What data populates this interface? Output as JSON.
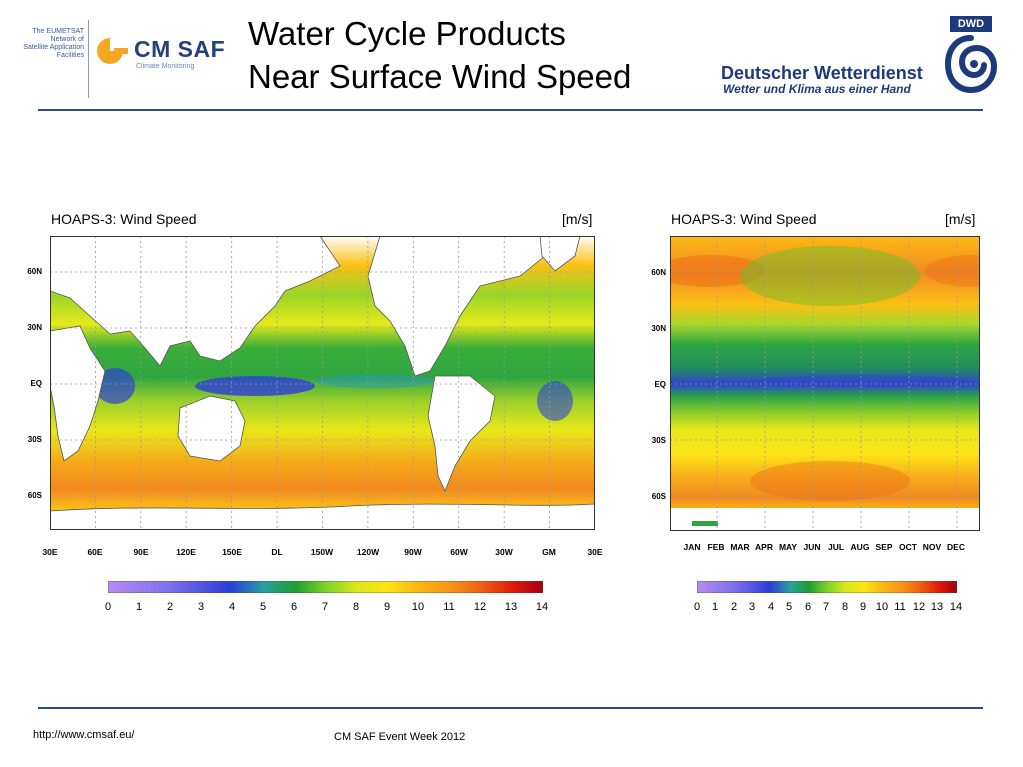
{
  "header": {
    "title_line1": "Water Cycle Products",
    "title_line2": "Near Surface Wind Speed",
    "eumetsat_text": [
      "The EUMETSAT",
      "Network of",
      "Satellite Application",
      "Facilities"
    ],
    "cmsaf_logo_text": "CM SAF",
    "cmsaf_sub_text": "Climate Monitoring",
    "dwd_badge": "DWD",
    "dwd_name": "Deutscher Wetterdienst",
    "dwd_slogan": "Wetter und Klima aus einer Hand"
  },
  "left_plot": {
    "title": "HOAPS-3: Wind Speed",
    "unit": "[m/s]",
    "lat_labels": [
      "60N",
      "30N",
      "EQ",
      "30S",
      "60S"
    ],
    "lon_labels": [
      "30E",
      "60E",
      "90E",
      "120E",
      "150E",
      "DL",
      "150W",
      "120W",
      "90W",
      "60W",
      "30W",
      "GM",
      "30E"
    ],
    "colorbar_ticks": [
      "0",
      "1",
      "2",
      "3",
      "4",
      "5",
      "6",
      "7",
      "8",
      "9",
      "10",
      "11",
      "12",
      "13",
      "14"
    ]
  },
  "right_plot": {
    "title": "HOAPS-3: Wind Speed",
    "unit": "[m/s]",
    "lat_labels": [
      "60N",
      "30N",
      "EQ",
      "30S",
      "60S"
    ],
    "month_labels": [
      "JAN",
      "FEB",
      "MAR",
      "APR",
      "MAY",
      "JUN",
      "JUL",
      "AUG",
      "SEP",
      "OCT",
      "NOV",
      "DEC"
    ],
    "colorbar_ticks": [
      "0",
      "1",
      "2",
      "3",
      "4",
      "5",
      "6",
      "7",
      "8",
      "9",
      "10",
      "11",
      "12",
      "13",
      "14"
    ]
  },
  "colors": {
    "rule": "#2b4b8f",
    "cmsaf_blue": "#25407f",
    "cmsaf_orange": "#f5a623",
    "dwd_blue": "#1d3a7c"
  },
  "footer": {
    "url": "http://www.cmsaf.eu/",
    "event": "CM SAF Event Week 2012"
  }
}
